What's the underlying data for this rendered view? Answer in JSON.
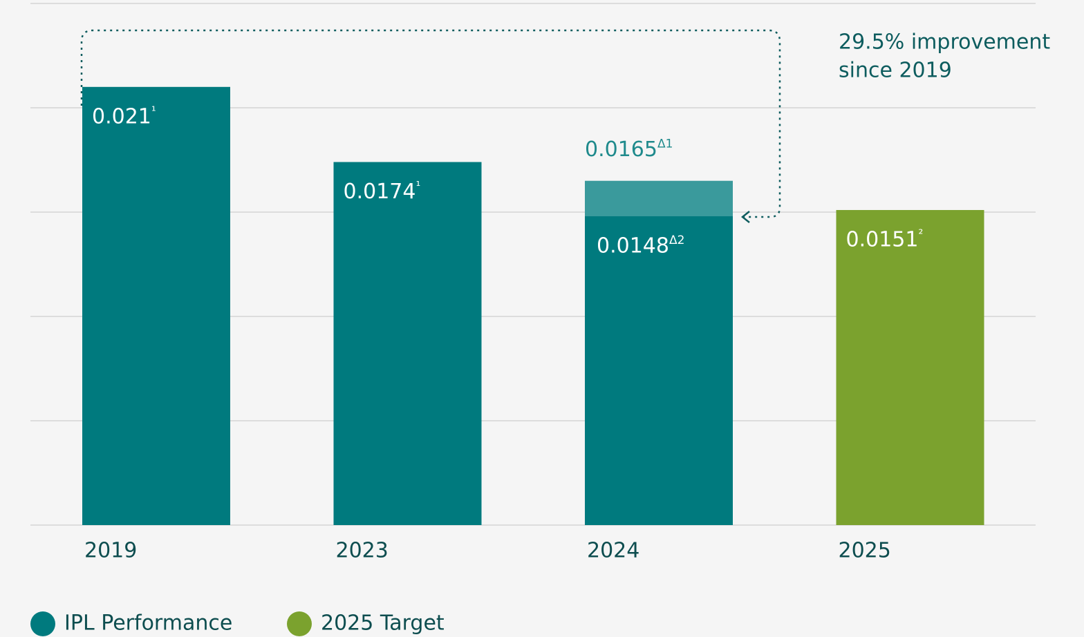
{
  "chart_data": {
    "type": "bar",
    "categories": [
      "2019",
      "2023",
      "2024",
      "2025"
    ],
    "series": [
      {
        "name": "IPL Performance",
        "color": "#007a7e",
        "values": [
          0.021,
          0.0174,
          0.0148,
          null
        ],
        "value_labels": [
          "0.021¹",
          "0.0174¹",
          "0.0148Δ2",
          null
        ]
      },
      {
        "name": "2025 Target",
        "color": "#7ba22e",
        "values": [
          null,
          null,
          null,
          0.0151
        ],
        "value_labels": [
          null,
          null,
          null,
          "0.0151²"
        ]
      }
    ],
    "overlay": {
      "color": "#3a9a9c",
      "values": [
        null,
        null,
        0.0165,
        null
      ],
      "value_labels": [
        null,
        null,
        "0.0165Δ1",
        null
      ]
    },
    "annotation": [
      "29.5% improvement",
      "since 2019"
    ],
    "ylim": [
      0,
      0.025
    ],
    "yticks": [
      0,
      0.005,
      0.01,
      0.015,
      0.02,
      0.025
    ],
    "grid": true,
    "legend": "bottom-left"
  }
}
